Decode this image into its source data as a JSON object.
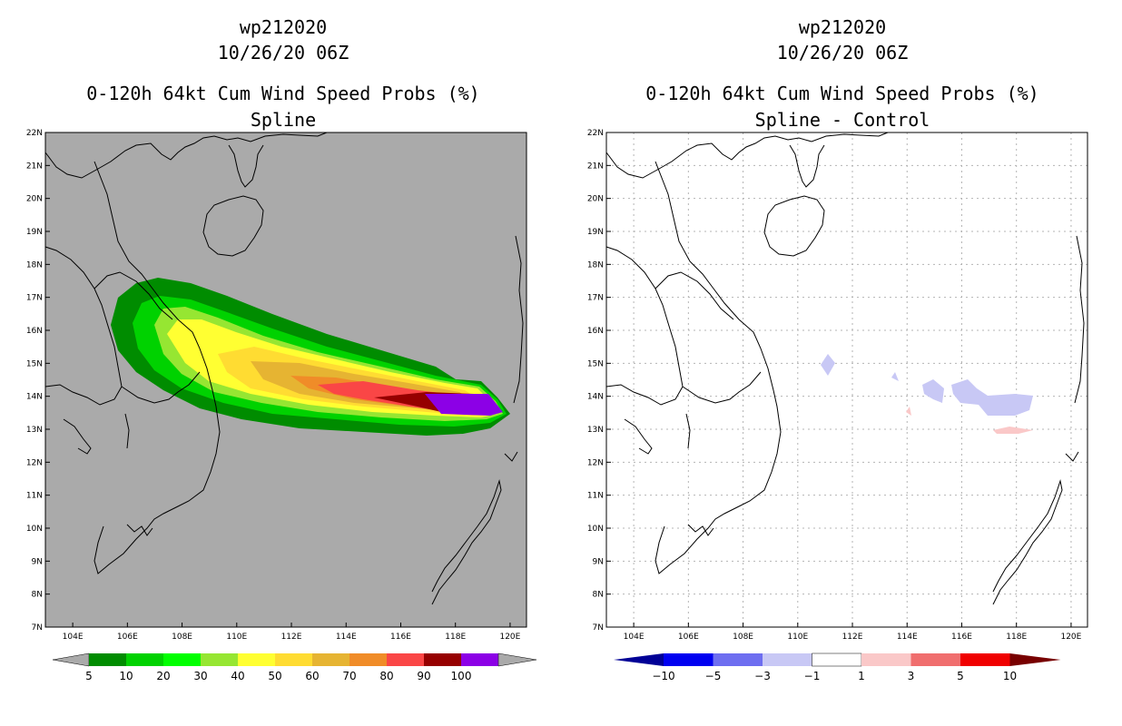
{
  "left_panel": {
    "storm_id": "wp212020",
    "datetime": "10/26/20 06Z",
    "product": "0-120h 64kt Cum Wind Speed Probs (%)",
    "subtitle": "Spline",
    "colorbar_labels": [
      "5",
      "10",
      "20",
      "30",
      "40",
      "50",
      "60",
      "70",
      "80",
      "90",
      "100"
    ],
    "colorbar_colors": [
      "#008c00",
      "#00d200",
      "#00ff00",
      "#96e632",
      "#ffff32",
      "#ffdc32",
      "#e6b432",
      "#f08c28",
      "#fa4646",
      "#960000",
      "#8c00e6"
    ]
  },
  "right_panel": {
    "storm_id": "wp212020",
    "datetime": "10/26/20 06Z",
    "product": "0-120h 64kt Cum Wind Speed Probs (%)",
    "subtitle": "Spline - Control",
    "colorbar_labels": [
      "−10",
      "−5",
      "−3",
      "−1",
      "1",
      "3",
      "5",
      "10"
    ],
    "colorbar_colors": [
      "#000096",
      "#0000f0",
      "#6e6ef0",
      "#c8c8f5",
      "#ffffff",
      "#fac8c8",
      "#f06e6e",
      "#f00000",
      "#780000"
    ]
  },
  "axes": {
    "lon_labels": [
      "104E",
      "106E",
      "108E",
      "110E",
      "112E",
      "114E",
      "116E",
      "118E",
      "120E"
    ],
    "lat_labels": [
      "22N",
      "21N",
      "20N",
      "19N",
      "18N",
      "17N",
      "16N",
      "15N",
      "14N",
      "13N",
      "12N",
      "11N",
      "10N",
      "9N",
      "8N",
      "7N"
    ]
  }
}
